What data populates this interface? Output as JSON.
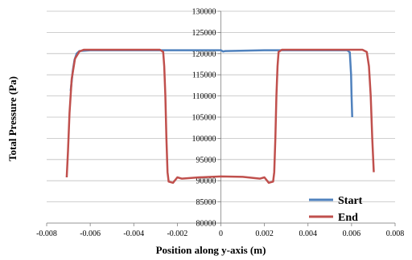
{
  "chart_data": {
    "type": "line",
    "title": "",
    "xlabel": "Position along y-axis (m)",
    "ylabel": "Total Pressure (Pa)",
    "xlim": [
      -0.008,
      0.008
    ],
    "ylim": [
      80000,
      130000
    ],
    "xticks": [
      -0.008,
      -0.006,
      -0.004,
      -0.002,
      0,
      0.002,
      0.004,
      0.006,
      0.008
    ],
    "xtick_labels": [
      "-0.008",
      "-0.006",
      "-0.004",
      "-0.002",
      "0",
      "0.002",
      "0.004",
      "0.006",
      "0.008"
    ],
    "yticks": [
      80000,
      85000,
      90000,
      95000,
      100000,
      105000,
      110000,
      115000,
      120000,
      125000,
      130000
    ],
    "ytick_labels": [
      "80000",
      "85000",
      "90000",
      "95000",
      "100000",
      "105000",
      "110000",
      "115000",
      "120000",
      "125000",
      "130000"
    ],
    "grid": "horizontal",
    "legend": "bottom-right",
    "series": [
      {
        "name": "Start",
        "color": "#4f81bd",
        "points": [
          [
            -0.0069,
            111200
          ],
          [
            -0.0068,
            116000
          ],
          [
            -0.00672,
            118500
          ],
          [
            -0.00662,
            120000
          ],
          [
            -0.0065,
            120600
          ],
          [
            -0.006,
            120800
          ],
          [
            -0.004,
            120800
          ],
          [
            -0.002,
            120800
          ],
          [
            0,
            120800
          ],
          [
            0.0001,
            120500
          ],
          [
            0.0002,
            120600
          ],
          [
            0.002,
            120800
          ],
          [
            0.004,
            120800
          ],
          [
            0.0058,
            120800
          ],
          [
            0.00592,
            120300
          ],
          [
            0.00598,
            115000
          ],
          [
            0.006,
            110000
          ],
          [
            0.00603,
            105000
          ]
        ]
      },
      {
        "name": "End",
        "color": "#c0504d",
        "points": [
          [
            -0.00708,
            90800
          ],
          [
            -0.00702,
            97000
          ],
          [
            -0.00695,
            106000
          ],
          [
            -0.00685,
            114000
          ],
          [
            -0.0067,
            118800
          ],
          [
            -0.0065,
            120500
          ],
          [
            -0.0063,
            120900
          ],
          [
            -0.0028,
            120900
          ],
          [
            -0.00265,
            120400
          ],
          [
            -0.0026,
            117000
          ],
          [
            -0.00255,
            110000
          ],
          [
            -0.0025,
            100000
          ],
          [
            -0.00245,
            92000
          ],
          [
            -0.0024,
            89800
          ],
          [
            -0.0022,
            89500
          ],
          [
            -0.002,
            90800
          ],
          [
            -0.0018,
            90500
          ],
          [
            -0.001,
            90800
          ],
          [
            0,
            91000
          ],
          [
            0.001,
            90900
          ],
          [
            0.0018,
            90500
          ],
          [
            0.002,
            90800
          ],
          [
            0.0022,
            89500
          ],
          [
            0.0024,
            89800
          ],
          [
            0.00245,
            92000
          ],
          [
            0.0025,
            100000
          ],
          [
            0.00255,
            110000
          ],
          [
            0.0026,
            117000
          ],
          [
            0.00265,
            120400
          ],
          [
            0.0028,
            120900
          ],
          [
            0.0065,
            120900
          ],
          [
            0.0067,
            120400
          ],
          [
            0.0068,
            117000
          ],
          [
            0.00688,
            110000
          ],
          [
            0.00695,
            100000
          ],
          [
            0.00702,
            92000
          ]
        ]
      }
    ]
  }
}
